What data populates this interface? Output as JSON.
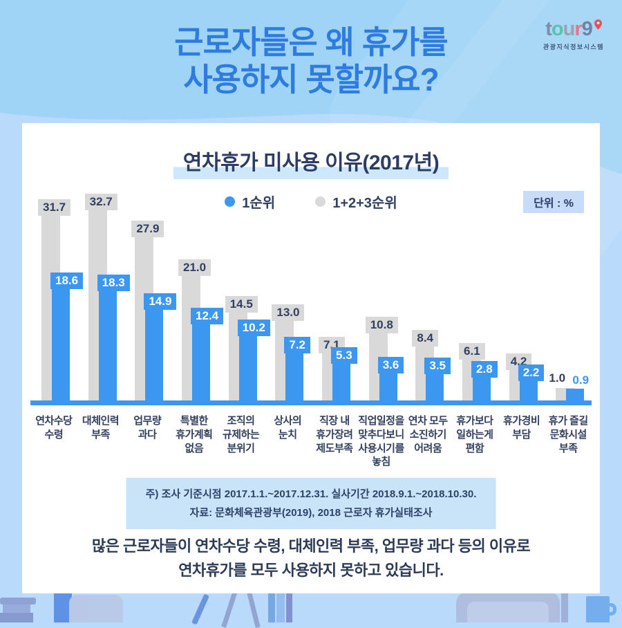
{
  "page": {
    "main_title_line1": "근로자들은 왜 휴가를",
    "main_title_line2": "사용하지 못할까요?",
    "logo": {
      "letters": [
        "t",
        "o",
        "u",
        "r",
        "9"
      ],
      "caption": "관광지식정보시스템"
    },
    "unit_label": "단위 : %",
    "note_line1": "주) 조사 기준시점 2017.1.1.~2017.12.31. 실사기간 2018.9.1.~2018.10.30.",
    "note_line2": "자료: 문화체육관광부(2019), 2018 근로자 휴가실태조사",
    "summary_line1": "많은 근로자들이 연차수당 수령, 대체인력 부족, 업무량 과다 등의 이유로",
    "summary_line2": "연차휴가를 모두 사용하지 못하고 있습니다."
  },
  "chart_data": {
    "type": "bar",
    "title": "연차휴가 미사용 이유(2017년)",
    "unit": "%",
    "grid": false,
    "legend_position": "top-center",
    "ylim": [
      0,
      35
    ],
    "categories": [
      "연차수당\n수령",
      "대체인력\n부족",
      "업무량\n과다",
      "특별한\n휴가계획\n없음",
      "조직의\n규제하는\n분위기",
      "상사의\n눈치",
      "직장 내\n휴가장려\n제도부족",
      "직업일정을\n맞추다보니\n사용시기를\n놓침",
      "연차 모두\n소진하기\n어려움",
      "휴가보다\n일하는게\n편함",
      "휴가경비\n부담",
      "휴가 즐길\n문화시설\n부족"
    ],
    "series": [
      {
        "name": "1순위",
        "color": "#3b97f0",
        "values": [
          18.6,
          18.3,
          14.9,
          12.4,
          10.2,
          7.2,
          5.3,
          3.6,
          3.5,
          2.8,
          2.2,
          0.9
        ]
      },
      {
        "name": "1+2+3순위",
        "color": "#d9d9d9",
        "values": [
          31.7,
          32.7,
          27.9,
          21.0,
          14.5,
          13.0,
          7.1,
          10.8,
          8.4,
          6.1,
          4.2,
          1.0
        ]
      }
    ]
  },
  "colors": {
    "accent_blue": "#3b97f0",
    "bar_gray": "#d9d9d9",
    "title_blue": "#2e7ce0",
    "navy_text": "#323f5e",
    "note_bg": "#c9e3f9",
    "unit_badge_bg": "#c6dcf8",
    "bg_top": "#a0d4f7",
    "bg_bottom": "#b9dafb"
  }
}
